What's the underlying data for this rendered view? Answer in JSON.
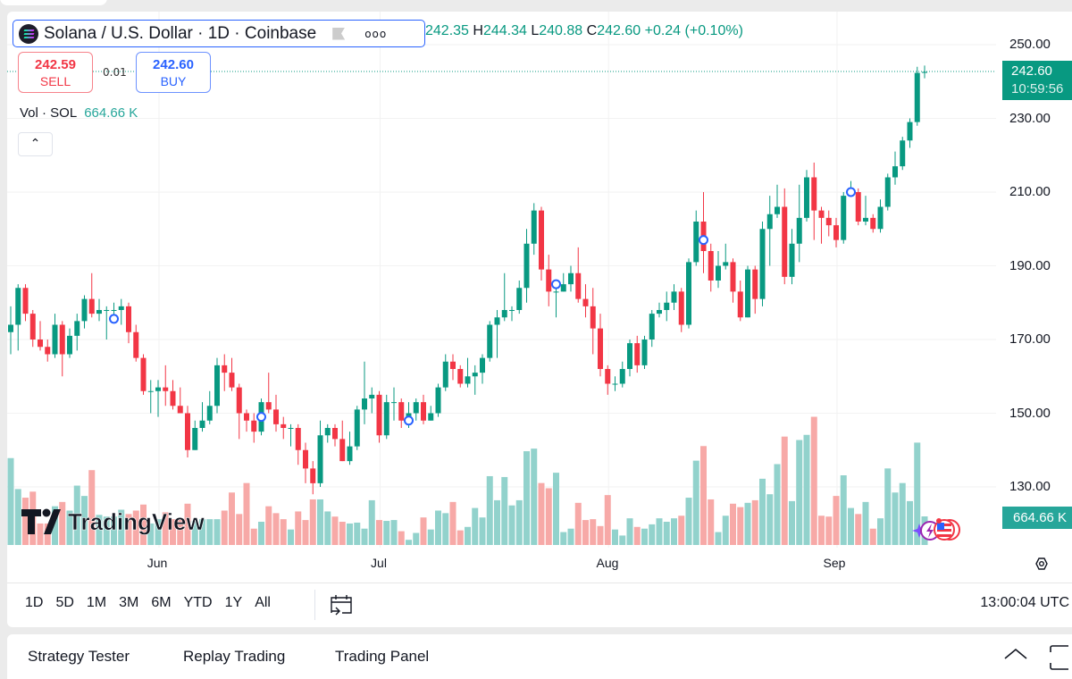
{
  "legend": {
    "title": "Solana / U.S. Dollar · 1D · Coinbase",
    "more": "ooo"
  },
  "ohlc": {
    "o": "242.35",
    "h_label": "H",
    "h": "244.34",
    "l_label": "L",
    "l": "240.88",
    "c_label": "C",
    "c": "242.60",
    "change": "+0.24 (+0.10%)"
  },
  "trade": {
    "sell_price": "242.59",
    "sell_label": "SELL",
    "spread": "0.01",
    "buy_price": "242.60",
    "buy_label": "BUY"
  },
  "volume_legend": {
    "label": "Vol · SOL",
    "value": "664.66 K"
  },
  "price_axis": {
    "ticks": [
      "250.00",
      "230.00",
      "210.00",
      "190.00",
      "170.00",
      "150.00",
      "130.00"
    ],
    "last_price": "242.60",
    "countdown": "10:59:56",
    "volume_tag": "664.66 K"
  },
  "time_axis": [
    "Jun",
    "Jul",
    "Aug",
    "Sep"
  ],
  "toolbar": {
    "ranges": [
      "1D",
      "5D",
      "1M",
      "3M",
      "6M",
      "YTD",
      "1Y",
      "All"
    ],
    "clock": "13:00:04 UTC"
  },
  "bottom_tabs": [
    "Strategy Tester",
    "Replay Trading",
    "Trading Panel"
  ],
  "watermark": "TradingView",
  "colors": {
    "up": "#089981",
    "down": "#f23645",
    "vol_up": "#92d2cc",
    "vol_down": "#f7a9a7",
    "accent": "#2962ff"
  },
  "chart_data": {
    "type": "candlestick",
    "title": "Solana / U.S. Dollar · 1D · Coinbase",
    "ylim": [
      122,
      254
    ],
    "yticks": [
      130,
      150,
      170,
      190,
      210,
      230,
      250
    ],
    "x_month_starts": {
      "Jun": 20,
      "Jul": 50,
      "Aug": 81,
      "Sep": 112
    },
    "last_price": 242.6,
    "candles_ohlc": [
      [
        172,
        179,
        166,
        174
      ],
      [
        174,
        185,
        167,
        184
      ],
      [
        184,
        185,
        175,
        177
      ],
      [
        177,
        178,
        168,
        170
      ],
      [
        170,
        175,
        167,
        168
      ],
      [
        168,
        170,
        164,
        166
      ],
      [
        166,
        177,
        165,
        174
      ],
      [
        174,
        175,
        160,
        166
      ],
      [
        166,
        173,
        165,
        171
      ],
      [
        171,
        177,
        167,
        175
      ],
      [
        175,
        182,
        173,
        181
      ],
      [
        181,
        188,
        176,
        177
      ],
      [
        177,
        181,
        175,
        178
      ],
      [
        178,
        179,
        170,
        178
      ],
      [
        178,
        180,
        176,
        178
      ],
      [
        178,
        181,
        174,
        179
      ],
      [
        179,
        180,
        169,
        172
      ],
      [
        172,
        174,
        164,
        165
      ],
      [
        165,
        166,
        155,
        156
      ],
      [
        156,
        159,
        150,
        156
      ],
      [
        156,
        159,
        149,
        157
      ],
      [
        157,
        163,
        152,
        156
      ],
      [
        156,
        159,
        151,
        152
      ],
      [
        152,
        157,
        150,
        150
      ],
      [
        150,
        152,
        138,
        140
      ],
      [
        140,
        148,
        140,
        146
      ],
      [
        146,
        153,
        145,
        148
      ],
      [
        148,
        156,
        147,
        152
      ],
      [
        152,
        165,
        150,
        163
      ],
      [
        163,
        166,
        156,
        161
      ],
      [
        161,
        165,
        156,
        157
      ],
      [
        157,
        158,
        143,
        150
      ],
      [
        150,
        151,
        145,
        148
      ],
      [
        148,
        150,
        142,
        145
      ],
      [
        145,
        154,
        144,
        153
      ],
      [
        153,
        161,
        150,
        151
      ],
      [
        151,
        155,
        145,
        147
      ],
      [
        147,
        149,
        143,
        146
      ],
      [
        146,
        147,
        141,
        146
      ],
      [
        146,
        147,
        136,
        140
      ],
      [
        140,
        142,
        131,
        135
      ],
      [
        135,
        137,
        128,
        131
      ],
      [
        131,
        148,
        130,
        144
      ],
      [
        144,
        147,
        142,
        146
      ],
      [
        146,
        147,
        141,
        143
      ],
      [
        143,
        148,
        137,
        137
      ],
      [
        137,
        145,
        136,
        141
      ],
      [
        141,
        152,
        140,
        151
      ],
      [
        151,
        164,
        147,
        154
      ],
      [
        154,
        157,
        150,
        155
      ],
      [
        155,
        156,
        142,
        144
      ],
      [
        144,
        155,
        143,
        153
      ],
      [
        153,
        157,
        148,
        153
      ],
      [
        153,
        154,
        146,
        148
      ],
      [
        148,
        153,
        146,
        150
      ],
      [
        150,
        154,
        148,
        153
      ],
      [
        153,
        155,
        147,
        148
      ],
      [
        148,
        152,
        148,
        150
      ],
      [
        150,
        158,
        149,
        157
      ],
      [
        157,
        166,
        156,
        164
      ],
      [
        164,
        166,
        159,
        162
      ],
      [
        162,
        163,
        157,
        158
      ],
      [
        158,
        165,
        157,
        160
      ],
      [
        160,
        163,
        155,
        161
      ],
      [
        161,
        166,
        158,
        165
      ],
      [
        165,
        175,
        164,
        174
      ],
      [
        174,
        178,
        165,
        176
      ],
      [
        176,
        188,
        175,
        178
      ],
      [
        178,
        179,
        175,
        178
      ],
      [
        178,
        186,
        177,
        184
      ],
      [
        184,
        200,
        180,
        196
      ],
      [
        196,
        207,
        193,
        205
      ],
      [
        205,
        206,
        186,
        189
      ],
      [
        189,
        193,
        179,
        183
      ],
      [
        183,
        185,
        176,
        183
      ],
      [
        183,
        188,
        183,
        185
      ],
      [
        185,
        190,
        183,
        188
      ],
      [
        188,
        195,
        180,
        181
      ],
      [
        181,
        185,
        176,
        179
      ],
      [
        179,
        184,
        166,
        173
      ],
      [
        173,
        177,
        160,
        162
      ],
      [
        162,
        163,
        155,
        158
      ],
      [
        158,
        160,
        156,
        158
      ],
      [
        158,
        164,
        157,
        162
      ],
      [
        162,
        170,
        160,
        169
      ],
      [
        169,
        171,
        161,
        163
      ],
      [
        163,
        171,
        162,
        170
      ],
      [
        170,
        178,
        168,
        177
      ],
      [
        177,
        180,
        176,
        178
      ],
      [
        178,
        183,
        175,
        180
      ],
      [
        180,
        185,
        178,
        183
      ],
      [
        183,
        184,
        172,
        174
      ],
      [
        174,
        192,
        173,
        191
      ],
      [
        191,
        205,
        190,
        202
      ],
      [
        202,
        210,
        188,
        194
      ],
      [
        194,
        196,
        183,
        186
      ],
      [
        186,
        194,
        184,
        190
      ],
      [
        190,
        196,
        189,
        191
      ],
      [
        191,
        192,
        180,
        183
      ],
      [
        183,
        186,
        175,
        176
      ],
      [
        176,
        190,
        176,
        189
      ],
      [
        189,
        190,
        177,
        181
      ],
      [
        181,
        202,
        179,
        200
      ],
      [
        200,
        209,
        190,
        204
      ],
      [
        204,
        212,
        203,
        206
      ],
      [
        206,
        211,
        185,
        187
      ],
      [
        187,
        200,
        185,
        196
      ],
      [
        196,
        212,
        191,
        203
      ],
      [
        203,
        216,
        202,
        214
      ],
      [
        214,
        218,
        197,
        205
      ],
      [
        205,
        206,
        196,
        203
      ],
      [
        203,
        205,
        198,
        201
      ],
      [
        201,
        203,
        195,
        197
      ],
      [
        197,
        210,
        196,
        209
      ],
      [
        209,
        213,
        209,
        210
      ],
      [
        210,
        211,
        201,
        202
      ],
      [
        202,
        209,
        201,
        203
      ],
      [
        203,
        204,
        199,
        200
      ],
      [
        200,
        208,
        199,
        206
      ],
      [
        206,
        215,
        205,
        214
      ],
      [
        214,
        221,
        212,
        217
      ],
      [
        217,
        225,
        216,
        224
      ],
      [
        224,
        230,
        222,
        229
      ],
      [
        229,
        244,
        228,
        242.35
      ],
      [
        242.35,
        244.34,
        240.88,
        242.6
      ]
    ],
    "volume_k": [
      2020,
      1300,
      1100,
      1240,
      500,
      500,
      900,
      1000,
      800,
      1380,
      1140,
      1740,
      700,
      660,
      660,
      820,
      720,
      800,
      940,
      500,
      600,
      760,
      600,
      600,
      960,
      560,
      600,
      600,
      600,
      800,
      1220,
      720,
      1440,
      380,
      540,
      900,
      740,
      600,
      360,
      780,
      580,
      1060,
      1060,
      780,
      660,
      540,
      500,
      520,
      380,
      1040,
      580,
      560,
      580,
      320,
      120,
      280,
      640,
      360,
      800,
      740,
      1000,
      340,
      420,
      860,
      640,
      1600,
      1040,
      1580,
      920,
      1040,
      2180,
      2240,
      1440,
      1320,
      1680,
      300,
      380,
      980,
      580,
      600,
      440,
      1160,
      360,
      220,
      620,
      420,
      380,
      480,
      620,
      540,
      620,
      680,
      1100,
      1960,
      2300,
      1060,
      300,
      680,
      960,
      880,
      980,
      1040,
      1540,
      1180,
      1880,
      2520,
      1020,
      2440,
      2560,
      2980,
      680,
      660,
      1140,
      1620,
      860,
      720,
      1000,
      380,
      620,
      1780,
      1220,
      1440,
      1020,
      2380,
      664.66
    ],
    "events": [
      {
        "index": 14,
        "price": 175.6
      },
      {
        "index": 34,
        "price": 149
      },
      {
        "index": 54,
        "price": 148
      },
      {
        "index": 74,
        "price": 185
      },
      {
        "index": 94,
        "price": 197
      },
      {
        "index": 114,
        "price": 210
      }
    ]
  }
}
